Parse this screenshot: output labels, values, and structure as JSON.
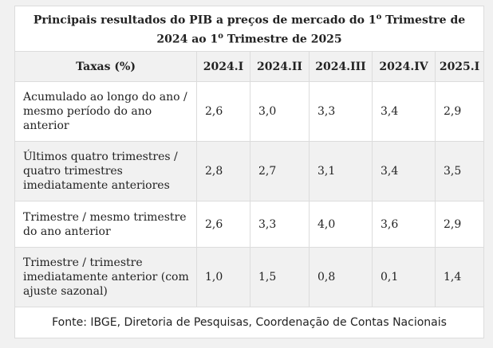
{
  "table": {
    "title_part1": "Principais resultados do PIB a preços de mercado do 1",
    "title_sup1": "o",
    "title_part2": " Trimestre de 2024 ao 1",
    "title_sup2": "o",
    "title_part3": " Trimestre de 2025",
    "columns": [
      "Taxas (%)",
      "2024.I",
      "2024.II",
      "2024.III",
      "2024.IV",
      "2025.I"
    ],
    "rows": [
      {
        "label": "Acumulado ao longo do ano / mesmo período do ano anterior",
        "values": [
          "2,6",
          "3,0",
          "3,3",
          "3,4",
          "2,9"
        ]
      },
      {
        "label": "Últimos quatro trimestres / quatro trimestres imediatamente anteriores",
        "values": [
          "2,8",
          "2,7",
          "3,1",
          "3,4",
          "3,5"
        ]
      },
      {
        "label": "Trimestre / mesmo trimestre do ano anterior",
        "values": [
          "2,6",
          "3,3",
          "4,0",
          "3,6",
          "2,9"
        ]
      },
      {
        "label": "Trimestre / trimestre imediatamente anterior (com ajuste sazonal)",
        "values": [
          "1,0",
          "1,5",
          "0,8",
          "0,1",
          "1,4"
        ]
      }
    ],
    "source": "Fonte: IBGE, Diretoria de Pesquisas, Coordenação de Contas Nacionais"
  }
}
